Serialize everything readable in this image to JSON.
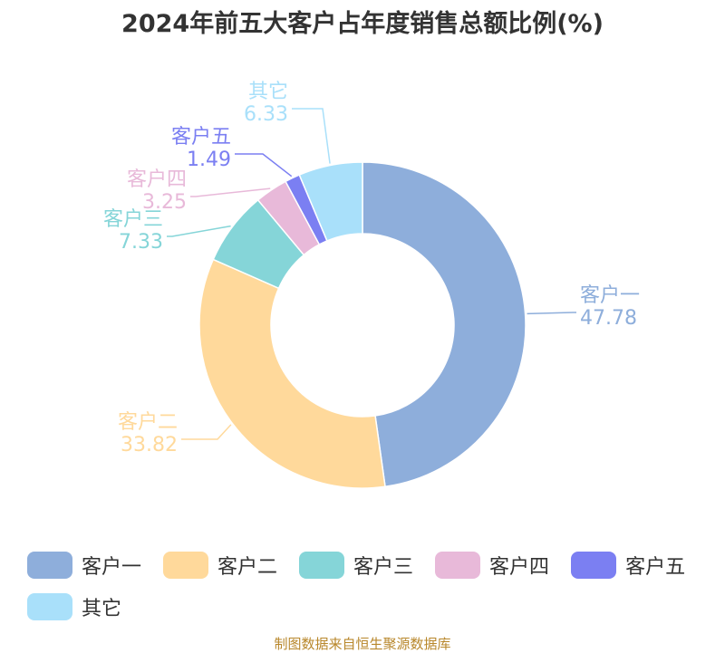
{
  "title": "2024年前五大客户占年度销售总额比例(%)",
  "footer": "制图数据来自恒生聚源数据库",
  "chart_data": {
    "type": "pie",
    "variant": "donut",
    "title": "2024年前五大客户占年度销售总额比例(%)",
    "unit": "%",
    "legend_position": "bottom",
    "slices": [
      {
        "name": "客户一",
        "value": 47.78,
        "label": "47.78",
        "color": "#8eaedb"
      },
      {
        "name": "客户二",
        "value": 33.82,
        "label": "33.82",
        "color": "#ffd99b"
      },
      {
        "name": "客户三",
        "value": 7.33,
        "label": "7.33",
        "color": "#85d5d8"
      },
      {
        "name": "客户四",
        "value": 3.25,
        "label": "3.25",
        "color": "#e8b9d9"
      },
      {
        "name": "客户五",
        "value": 1.49,
        "label": "1.49",
        "color": "#7b7ff2"
      },
      {
        "name": "其它",
        "value": 6.33,
        "label": "6.33",
        "color": "#a9e0fa"
      }
    ]
  }
}
